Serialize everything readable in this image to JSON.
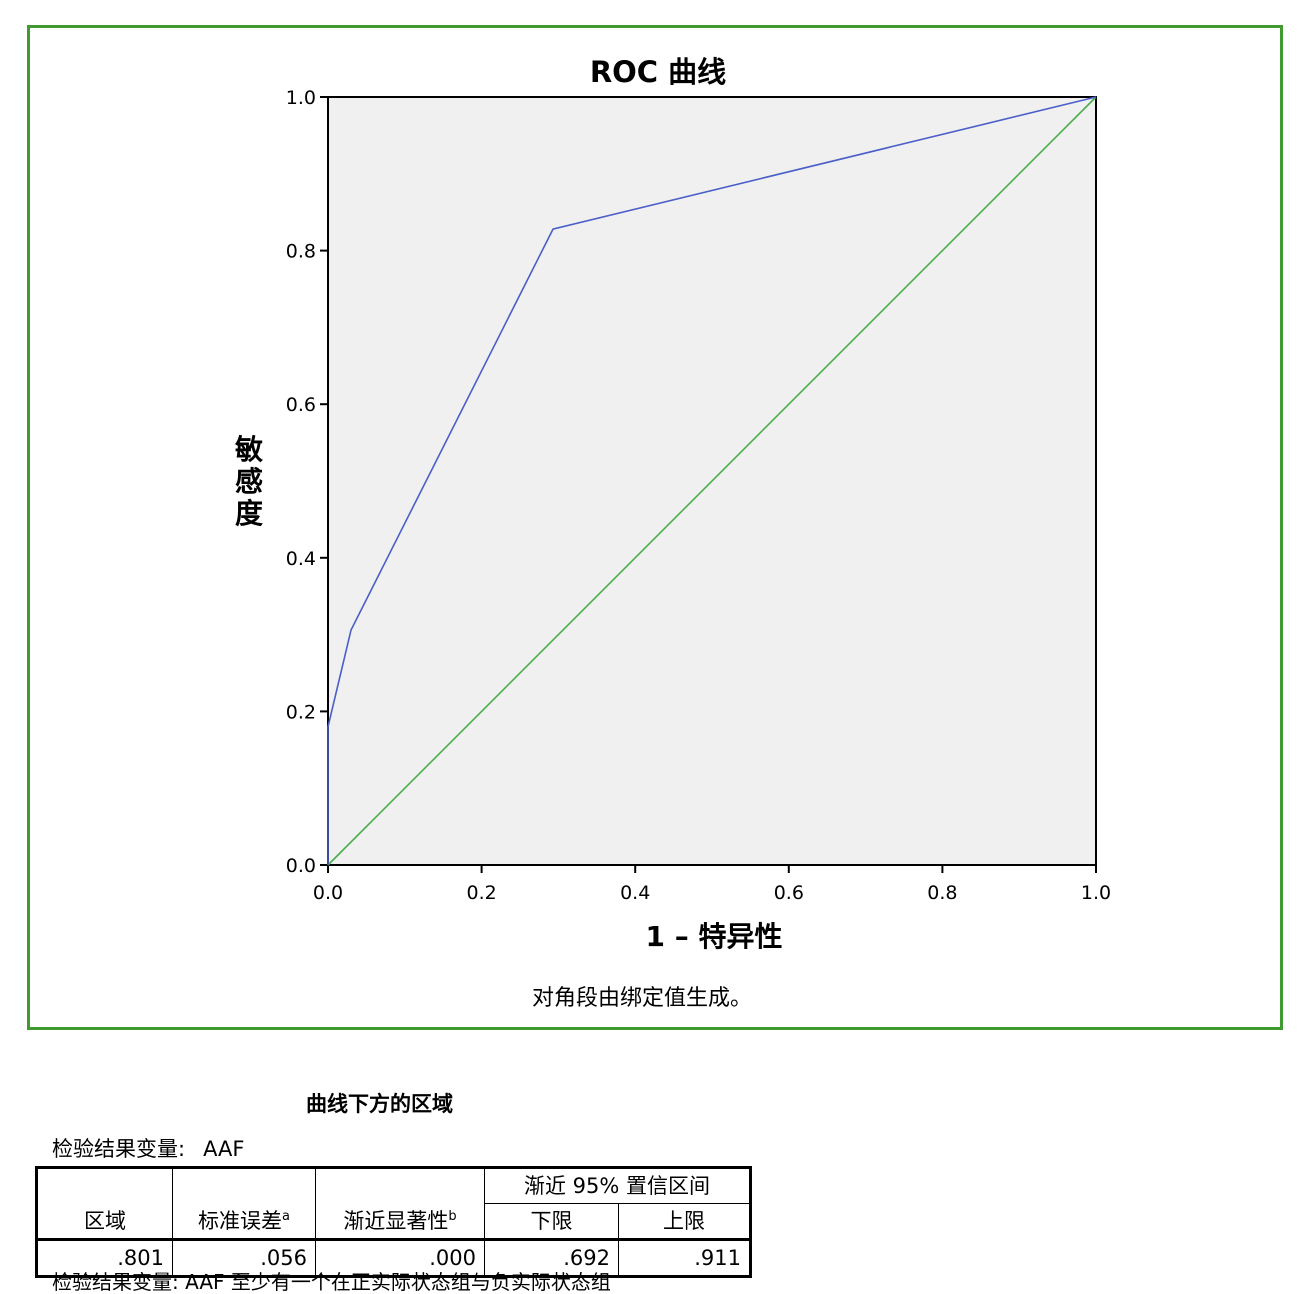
{
  "chart_data": {
    "type": "line",
    "title": "ROC 曲线",
    "xlabel": "1 – 特异性",
    "ylabel": "敏感度",
    "xlim": [
      0.0,
      1.0
    ],
    "ylim": [
      0.0,
      1.0
    ],
    "xticks": [
      "0.0",
      "0.2",
      "0.4",
      "0.6",
      "0.8",
      "1.0"
    ],
    "yticks": [
      "0.0",
      "0.2",
      "0.4",
      "0.6",
      "0.8",
      "1.0"
    ],
    "grid": false,
    "plot_background": "#f0f0f0",
    "series": [
      {
        "color": "#4a5fc9",
        "x": [
          0.0,
          0.0,
          0.03,
          0.293,
          1.0
        ],
        "y": [
          0.0,
          0.18,
          0.306,
          0.828,
          1.0
        ]
      },
      {
        "color": "#4aac4a",
        "x": [
          0.0,
          1.0
        ],
        "y": [
          0.0,
          1.0
        ]
      }
    ],
    "footnote": "对角段由绑定值生成。"
  },
  "table": {
    "title": "曲线下方的区域",
    "test_var_label": "检验结果变量:",
    "test_var_value": "AAF",
    "headers": {
      "area": "区域",
      "std_error": "标准误差",
      "std_error_sup": "a",
      "asymp_sig": "渐近显著性",
      "asymp_sig_sup": "b",
      "ci_group": "渐近 95% 置信区间",
      "lower": "下限",
      "upper": "上限"
    },
    "row": {
      "area": ".801",
      "std_error": ".056",
      "asymp_sig": ".000",
      "lower": ".692",
      "upper": ".911"
    },
    "note_truncated": "检验结果变量: AAF 至少有一个在正实际状态组与负实际状态组"
  },
  "frame_color": "#3f9b2f"
}
